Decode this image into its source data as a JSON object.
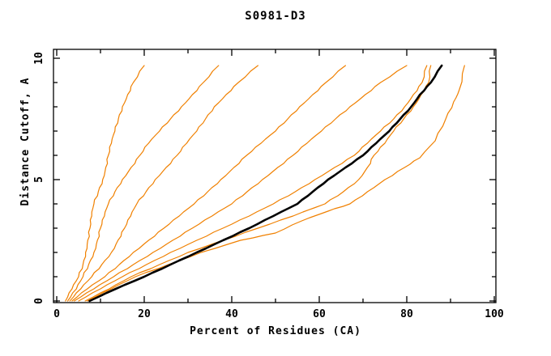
{
  "chart_data": {
    "type": "line",
    "title": "S0981-D3",
    "xlabel": "Percent of Residues (CA)",
    "ylabel": "Distance Cutoff, A",
    "xlim": [
      0,
      100
    ],
    "ylim": [
      0,
      10
    ],
    "x_major_ticks": [
      0,
      20,
      40,
      60,
      80,
      100
    ],
    "x_minor_ticks": [
      10,
      30,
      50,
      70,
      90
    ],
    "y_major_ticks": [
      0,
      5,
      10
    ],
    "y_minor_ticks": [
      1,
      2,
      3,
      4,
      6,
      7,
      8,
      9
    ],
    "grid": false,
    "legend": "none",
    "frame": "box-with-inward-ticks",
    "axis_color": "#000000",
    "model_color": "#f08000",
    "highlight_color": "#000000",
    "series": [
      {
        "name": "model-1",
        "color": "#f08000",
        "width": 1.2,
        "points": [
          [
            2,
            0
          ],
          [
            3.5,
            0.5
          ],
          [
            5,
            1
          ],
          [
            6,
            1.5
          ],
          [
            6.6,
            2
          ],
          [
            7.1,
            2.5
          ],
          [
            7.6,
            3
          ],
          [
            8,
            3.5
          ],
          [
            8.5,
            4
          ],
          [
            9.5,
            4.5
          ],
          [
            10.5,
            5
          ],
          [
            11.2,
            5.5
          ],
          [
            11.8,
            6
          ],
          [
            12.5,
            6.5
          ],
          [
            13.3,
            7
          ],
          [
            14.1,
            7.5
          ],
          [
            15,
            8
          ],
          [
            16.2,
            8.5
          ],
          [
            17.5,
            9
          ],
          [
            20,
            9.7
          ]
        ]
      },
      {
        "name": "model-2",
        "color": "#f08000",
        "width": 1.2,
        "points": [
          [
            2.5,
            0
          ],
          [
            4.5,
            0.5
          ],
          [
            6,
            1
          ],
          [
            7.3,
            1.5
          ],
          [
            8.5,
            2
          ],
          [
            9.3,
            2.5
          ],
          [
            10,
            3
          ],
          [
            10.9,
            3.5
          ],
          [
            11.8,
            4
          ],
          [
            13.3,
            4.5
          ],
          [
            15,
            5
          ],
          [
            17,
            5.5
          ],
          [
            19,
            6
          ],
          [
            21,
            6.5
          ],
          [
            23.5,
            7
          ],
          [
            26,
            7.5
          ],
          [
            28.5,
            8
          ],
          [
            31,
            8.5
          ],
          [
            33.5,
            9
          ],
          [
            37,
            9.7
          ]
        ]
      },
      {
        "name": "model-3",
        "color": "#f08000",
        "width": 1.2,
        "points": [
          [
            3,
            0
          ],
          [
            5.5,
            0.5
          ],
          [
            8,
            1
          ],
          [
            10.3,
            1.5
          ],
          [
            12.5,
            2
          ],
          [
            14,
            2.5
          ],
          [
            15.5,
            3
          ],
          [
            16.9,
            3.5
          ],
          [
            18.3,
            4
          ],
          [
            20.4,
            4.5
          ],
          [
            22.5,
            5
          ],
          [
            25,
            5.5
          ],
          [
            27.5,
            6
          ],
          [
            29.7,
            6.5
          ],
          [
            32,
            7
          ],
          [
            34,
            7.5
          ],
          [
            36,
            8
          ],
          [
            38.7,
            8.5
          ],
          [
            41.5,
            9
          ],
          [
            46,
            9.7
          ]
        ]
      },
      {
        "name": "model-4",
        "color": "#f08000",
        "width": 1.2,
        "points": [
          [
            3.5,
            0
          ],
          [
            7,
            0.5
          ],
          [
            11,
            1
          ],
          [
            14.3,
            1.5
          ],
          [
            17.5,
            2
          ],
          [
            21,
            2.5
          ],
          [
            24.5,
            3
          ],
          [
            28,
            3.5
          ],
          [
            31.4,
            4
          ],
          [
            34.5,
            4.5
          ],
          [
            37.5,
            5
          ],
          [
            40.5,
            5.5
          ],
          [
            43.4,
            6
          ],
          [
            46.7,
            6.5
          ],
          [
            50,
            7
          ],
          [
            52.8,
            7.5
          ],
          [
            55.5,
            8
          ],
          [
            58.5,
            8.5
          ],
          [
            61.5,
            9
          ],
          [
            66,
            9.7
          ]
        ]
      },
      {
        "name": "model-5",
        "color": "#f08000",
        "width": 1.2,
        "points": [
          [
            4,
            0
          ],
          [
            8.5,
            0.5
          ],
          [
            13,
            1
          ],
          [
            17.5,
            1.5
          ],
          [
            22,
            2
          ],
          [
            26.5,
            2.5
          ],
          [
            31,
            3
          ],
          [
            35.5,
            3.5
          ],
          [
            40,
            4
          ],
          [
            43.5,
            4.5
          ],
          [
            47,
            5
          ],
          [
            50.5,
            5.5
          ],
          [
            54,
            6
          ],
          [
            57.2,
            6.5
          ],
          [
            60.5,
            7
          ],
          [
            63.7,
            7.5
          ],
          [
            67,
            8
          ],
          [
            70.5,
            8.5
          ],
          [
            74,
            9
          ],
          [
            80,
            9.7
          ]
        ]
      },
      {
        "name": "model-6",
        "color": "#f08000",
        "width": 1.2,
        "points": [
          [
            5,
            0
          ],
          [
            10,
            0.5
          ],
          [
            15,
            1
          ],
          [
            20.5,
            1.5
          ],
          [
            26,
            2
          ],
          [
            32,
            2.5
          ],
          [
            38,
            3
          ],
          [
            44,
            3.5
          ],
          [
            49.5,
            4
          ],
          [
            54.5,
            4.5
          ],
          [
            59,
            5
          ],
          [
            63.5,
            5.5
          ],
          [
            68,
            6
          ],
          [
            71,
            6.5
          ],
          [
            74,
            7
          ],
          [
            77,
            7.5
          ],
          [
            79.5,
            8
          ],
          [
            81.5,
            8.5
          ],
          [
            83.5,
            9
          ],
          [
            84.6,
            9.7
          ]
        ]
      },
      {
        "name": "model-7",
        "color": "#f08000",
        "width": 1.2,
        "points": [
          [
            6.5,
            0
          ],
          [
            12,
            0.5
          ],
          [
            17,
            1
          ],
          [
            23.5,
            1.5
          ],
          [
            30,
            2
          ],
          [
            38,
            2.5
          ],
          [
            46,
            3
          ],
          [
            54,
            3.5
          ],
          [
            61.3,
            4
          ],
          [
            65.5,
            4.5
          ],
          [
            69,
            5
          ],
          [
            71,
            5.5
          ],
          [
            72.5,
            6
          ],
          [
            75,
            6.5
          ],
          [
            77,
            7
          ],
          [
            79.3,
            7.5
          ],
          [
            81.5,
            8
          ],
          [
            83.3,
            8.5
          ],
          [
            85,
            9
          ],
          [
            85.5,
            9.7
          ]
        ]
      },
      {
        "name": "model-8",
        "color": "#f08000",
        "width": 1.2,
        "points": [
          [
            7,
            0
          ],
          [
            12.5,
            0.5
          ],
          [
            18,
            1
          ],
          [
            25.5,
            1.5
          ],
          [
            33,
            2
          ],
          [
            42,
            2.5
          ],
          [
            50,
            2.8
          ],
          [
            56,
            3.3
          ],
          [
            62,
            3.7
          ],
          [
            67,
            4
          ],
          [
            71,
            4.5
          ],
          [
            75,
            5
          ],
          [
            79.5,
            5.5
          ],
          [
            83,
            5.9
          ],
          [
            86.5,
            6.6
          ],
          [
            88.9,
            7.5
          ],
          [
            90.7,
            8.2
          ],
          [
            92,
            8.7
          ],
          [
            93.2,
            9.7
          ]
        ]
      },
      {
        "name": "highlighted-model",
        "color": "#000000",
        "width": 2.6,
        "points": [
          [
            7.5,
            0
          ],
          [
            13.5,
            0.5
          ],
          [
            20,
            1
          ],
          [
            26,
            1.5
          ],
          [
            32,
            2
          ],
          [
            38,
            2.5
          ],
          [
            44,
            3
          ],
          [
            49.5,
            3.5
          ],
          [
            55,
            4
          ],
          [
            58.5,
            4.5
          ],
          [
            62,
            5
          ],
          [
            66,
            5.5
          ],
          [
            70,
            6
          ],
          [
            73,
            6.5
          ],
          [
            76,
            7
          ],
          [
            78.5,
            7.5
          ],
          [
            81,
            8
          ],
          [
            83,
            8.5
          ],
          [
            85.5,
            9
          ],
          [
            88,
            9.7
          ]
        ]
      }
    ]
  }
}
